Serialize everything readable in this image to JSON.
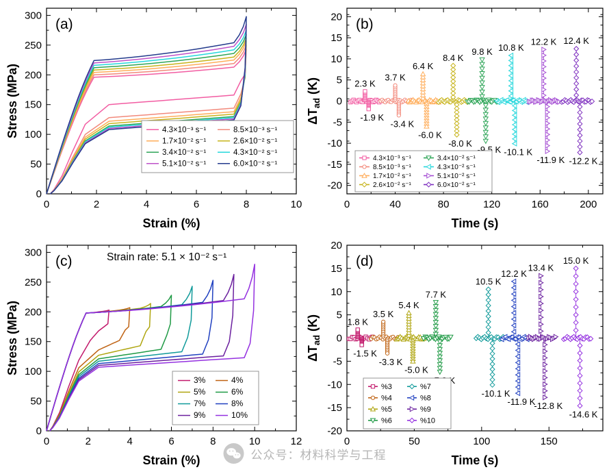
{
  "watermark": {
    "text": "公众号：材料科学与工程",
    "logo": "wechat-icon"
  },
  "chart_data": [
    {
      "id": "a",
      "type": "line",
      "panel_label": "(a)",
      "xlabel": "Strain (%)",
      "ylabel": {
        "main": "Stress (MPa)"
      },
      "xlim": [
        0,
        10
      ],
      "ylim": [
        0,
        312
      ],
      "xticks": [
        0,
        2,
        4,
        6,
        8,
        10
      ],
      "yticks": [
        0,
        50,
        100,
        150,
        200,
        250,
        300
      ],
      "x_minor": 1,
      "y_minor": 25,
      "content": "loops",
      "legend_order": "row",
      "series": [
        {
          "name": "4.3×10⁻³ s⁻¹",
          "color": "#F25CA2",
          "max_strain": 8,
          "plateau_start": 196,
          "plateau_end": 213,
          "peak": 243,
          "unload_plateau": 150
        },
        {
          "name": "8.5×10⁻³ s⁻¹",
          "color": "#F2897B",
          "max_strain": 8,
          "plateau_start": 200,
          "plateau_end": 219,
          "peak": 250,
          "unload_plateau": 128
        },
        {
          "name": "1.7×10⁻² s⁻¹",
          "color": "#FFAD5A",
          "max_strain": 8,
          "plateau_start": 204,
          "plateau_end": 225,
          "peak": 257,
          "unload_plateau": 122
        },
        {
          "name": "2.6×10⁻² s⁻¹",
          "color": "#C7B41C",
          "max_strain": 8,
          "plateau_start": 208,
          "plateau_end": 230,
          "peak": 262,
          "unload_plateau": 118
        },
        {
          "name": "3.4×10⁻² s⁻¹",
          "color": "#2FA558",
          "max_strain": 8,
          "plateau_start": 212,
          "plateau_end": 236,
          "peak": 268,
          "unload_plateau": 114
        },
        {
          "name": "4.3×10⁻² s⁻¹",
          "color": "#25D7DC",
          "max_strain": 8,
          "plateau_start": 216,
          "plateau_end": 242,
          "peak": 275,
          "unload_plateau": 112
        },
        {
          "name": "5.1×10⁻² s⁻¹",
          "color": "#BE52C8",
          "max_strain": 8,
          "plateau_start": 220,
          "plateau_end": 248,
          "peak": 285,
          "unload_plateau": 110
        },
        {
          "name": "6.0×10⁻² s⁻¹",
          "color": "#233A8C",
          "max_strain": 8,
          "plateau_start": 224,
          "plateau_end": 254,
          "peak": 298,
          "unload_plateau": 108
        }
      ]
    },
    {
      "id": "b",
      "type": "scatter",
      "panel_label": "(b)",
      "xlabel": "Time (s)",
      "ylabel": {
        "main": "ΔT",
        "sub": "ad",
        "rest": " (K)"
      },
      "xlim": [
        0,
        212
      ],
      "ylim": [
        -22,
        22
      ],
      "xticks": [
        0,
        40,
        80,
        120,
        160,
        200
      ],
      "yticks": [
        -20,
        -15,
        -10,
        -5,
        0,
        5,
        10,
        15,
        20
      ],
      "x_minor": 20,
      "y_minor": 2.5,
      "content": "spikes",
      "legend_order": "col",
      "series": [
        {
          "name": "4.3×10⁻³ s⁻¹",
          "color": "#F25CA2",
          "marker": "square",
          "time": 15,
          "peak": 2.3,
          "trough": -1.9,
          "peak_label": "2.3 K",
          "trough_label": "-1.9 K"
        },
        {
          "name": "8.5×10⁻³ s⁻¹",
          "color": "#F2897B",
          "marker": "circle",
          "time": 40,
          "peak": 3.7,
          "trough": -3.4,
          "peak_label": "3.7 K",
          "trough_label": "-3.4 K"
        },
        {
          "name": "1.7×10⁻² s⁻¹",
          "color": "#FFAD5A",
          "marker": "triangle-up",
          "time": 63,
          "peak": 6.4,
          "trough": -6.0,
          "peak_label": "6.4 K",
          "trough_label": "-6.0 K"
        },
        {
          "name": "2.6×10⁻² s⁻¹",
          "color": "#C7B41C",
          "marker": "diamond",
          "time": 88,
          "peak": 8.4,
          "trough": -8.0,
          "peak_label": "8.4 K",
          "trough_label": "-8.0 K"
        },
        {
          "name": "3.4×10⁻² s⁻¹",
          "color": "#2FA558",
          "marker": "triangle-down",
          "time": 112,
          "peak": 9.8,
          "trough": -9.5,
          "peak_label": "9.8 K",
          "trough_label": "-9.5 K"
        },
        {
          "name": "4.3×10⁻² s⁻¹",
          "color": "#25D7DC",
          "marker": "triangle-left",
          "time": 136,
          "peak": 10.8,
          "trough": -10.1,
          "peak_label": "10.8 K",
          "trough_label": "-10.1 K"
        },
        {
          "name": "5.1×10⁻² s⁻¹",
          "color": "#A44CD3",
          "marker": "triangle-right",
          "time": 163,
          "peak": 12.2,
          "trough": -11.9,
          "peak_label": "12.2 K",
          "trough_label": "-11.9 K"
        },
        {
          "name": "6.0×10⁻² s⁻¹",
          "color": "#7E2FBF",
          "marker": "diamond",
          "time": 190,
          "peak": 12.4,
          "trough": -12.2,
          "peak_label": "12.4 K",
          "trough_label": "-12.2 K"
        }
      ]
    },
    {
      "id": "c",
      "type": "line",
      "panel_label": "(c)",
      "annotation": "Strain rate: 5.1 × 10⁻² s⁻¹",
      "xlabel": "Strain (%)",
      "ylabel": {
        "main": "Stress (MPa)"
      },
      "xlim": [
        0,
        12
      ],
      "ylim": [
        0,
        312
      ],
      "xticks": [
        0,
        2,
        4,
        6,
        8,
        10,
        12
      ],
      "yticks": [
        0,
        50,
        100,
        150,
        200,
        250,
        300
      ],
      "x_minor": 1,
      "y_minor": 25,
      "content": "loops",
      "legend_order": "row",
      "series": [
        {
          "name": "3%",
          "color": "#C2186B",
          "max_strain": 3,
          "plateau_start": 198,
          "plateau_end": 200,
          "peak": 203,
          "unload_plateau": 152
        },
        {
          "name": "4%",
          "color": "#BF6212",
          "max_strain": 4,
          "plateau_start": 198,
          "plateau_end": 203,
          "peak": 207,
          "unload_plateau": 136
        },
        {
          "name": "5%",
          "color": "#AFA50F",
          "max_strain": 5,
          "plateau_start": 198,
          "plateau_end": 206,
          "peak": 214,
          "unload_plateau": 127
        },
        {
          "name": "6%",
          "color": "#1F9A45",
          "max_strain": 6,
          "plateau_start": 198,
          "plateau_end": 209,
          "peak": 228,
          "unload_plateau": 121
        },
        {
          "name": "7%",
          "color": "#109A9A",
          "max_strain": 7,
          "plateau_start": 198,
          "plateau_end": 212,
          "peak": 243,
          "unload_plateau": 117
        },
        {
          "name": "8%",
          "color": "#2040C0",
          "max_strain": 8,
          "plateau_start": 198,
          "plateau_end": 216,
          "peak": 253,
          "unload_plateau": 113
        },
        {
          "name": "9%",
          "color": "#6A1F9E",
          "max_strain": 9,
          "plateau_start": 198,
          "plateau_end": 219,
          "peak": 263,
          "unload_plateau": 110
        },
        {
          "name": "10%",
          "color": "#9430E0",
          "max_strain": 10,
          "plateau_start": 198,
          "plateau_end": 222,
          "peak": 280,
          "unload_plateau": 107
        }
      ]
    },
    {
      "id": "d",
      "type": "scatter",
      "panel_label": "(d)",
      "xlabel": "Time (s)",
      "ylabel": {
        "main": "ΔT",
        "sub": "ad",
        "rest": " (K)"
      },
      "xlim": [
        0,
        190
      ],
      "ylim": [
        -20,
        20
      ],
      "xticks": [
        0,
        50,
        100,
        150
      ],
      "yticks": [
        -20,
        -15,
        -10,
        -5,
        0,
        5,
        10,
        15,
        20
      ],
      "x_minor": 25,
      "y_minor": 2.5,
      "content": "spikes",
      "legend_order": "col",
      "series": [
        {
          "name": "%3",
          "color": "#C2186B",
          "marker": "square",
          "time": 8,
          "peak": 1.8,
          "trough": -1.5,
          "peak_label": "1.8 K",
          "trough_label": "-1.5 K"
        },
        {
          "name": "%4",
          "color": "#BF6212",
          "marker": "circle",
          "time": 27,
          "peak": 3.5,
          "trough": -3.3,
          "peak_label": "3.5 K",
          "trough_label": "-3.3 K"
        },
        {
          "name": "%5",
          "color": "#AFA50F",
          "marker": "triangle-up",
          "time": 46,
          "peak": 5.4,
          "trough": -5.0,
          "peak_label": "5.4 K",
          "trough_label": "-5.0 K"
        },
        {
          "name": "%6",
          "color": "#1F9A45",
          "marker": "triangle-down",
          "time": 66,
          "peak": 7.7,
          "trough": -7.3,
          "peak_label": "7.7 K",
          "trough_label": "-7.3 K"
        },
        {
          "name": "%7",
          "color": "#109A9A",
          "marker": "diamond",
          "time": 105,
          "peak": 10.5,
          "trough": -10.1,
          "peak_label": "10.5 K",
          "trough_label": "-10.1 K"
        },
        {
          "name": "%8",
          "color": "#2040C0",
          "marker": "triangle-left",
          "time": 124,
          "peak": 12.2,
          "trough": -11.9,
          "peak_label": "12.2 K",
          "trough_label": "-11.9 K"
        },
        {
          "name": "%9",
          "color": "#6A1F9E",
          "marker": "triangle-right",
          "time": 144,
          "peak": 13.4,
          "trough": -12.8,
          "peak_label": "13.4 K",
          "trough_label": "-12.8 K"
        },
        {
          "name": "%10",
          "color": "#9430E0",
          "marker": "diamond",
          "time": 170,
          "peak": 15.0,
          "trough": -14.6,
          "peak_label": "15.0 K",
          "trough_label": "-14.6 K"
        }
      ]
    }
  ]
}
